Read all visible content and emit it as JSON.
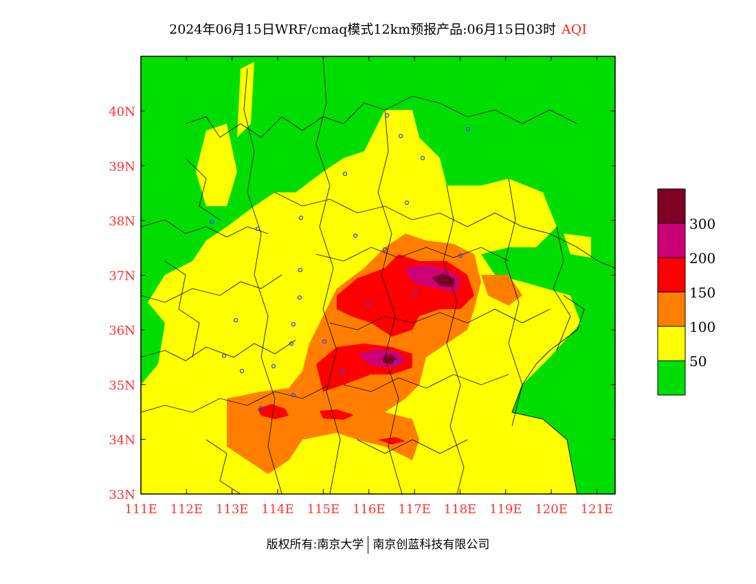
{
  "title": {
    "main": "2024年06月15日WRF/cmaq模式12km预报产品:06月15日03时",
    "variable": "AQI"
  },
  "axes": {
    "lon_labels": [
      "111E",
      "112E",
      "113E",
      "114E",
      "115E",
      "116E",
      "117E",
      "118E",
      "119E",
      "120E",
      "121E"
    ],
    "lat_labels": [
      "33N",
      "34N",
      "35N",
      "36N",
      "37N",
      "38N",
      "39N",
      "40N"
    ],
    "lon_range": [
      111,
      121.4
    ],
    "lat_range": [
      33,
      41
    ],
    "label_color": "#ff3030"
  },
  "legend": {
    "levels": [
      {
        "label": "",
        "color": "#00dd00"
      },
      {
        "label": "50",
        "color": "#ffff00"
      },
      {
        "label": "100",
        "color": "#ff7e00"
      },
      {
        "label": "150",
        "color": "#ff0000"
      },
      {
        "label": "200",
        "color": "#cc0077"
      },
      {
        "label": "300",
        "color": "#7e0023"
      }
    ]
  },
  "footer": {
    "left": "版权所有:南京大学",
    "right": "南京创蓝科技有限公司"
  }
}
